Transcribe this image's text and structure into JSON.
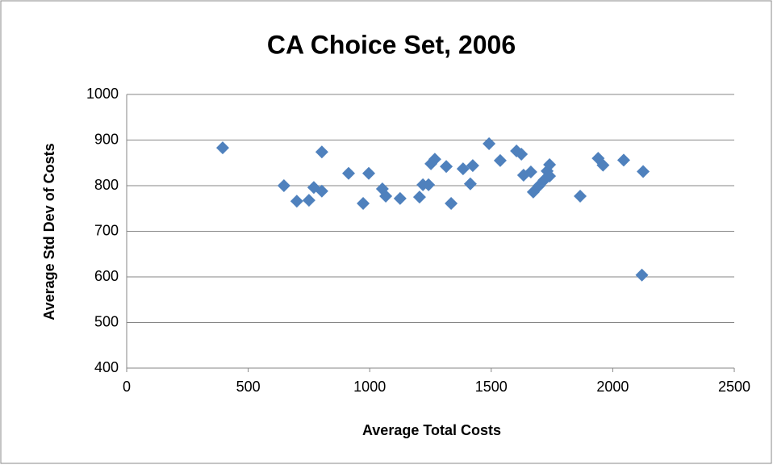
{
  "chart_data": {
    "type": "scatter",
    "title": "CA Choice Set, 2006",
    "x_label": "Average Total Costs",
    "y_label": "Average Std Dev of Costs",
    "series": [
      {
        "name": "CA Choice Set, 2006",
        "color": "#4f81bd",
        "x": [
          395,
          647,
          700,
          750,
          770,
          803,
          803,
          913,
          973,
          996,
          1052,
          1066,
          1125,
          1205,
          1219,
          1242,
          1252,
          1268,
          1315,
          1335,
          1384,
          1414,
          1424,
          1491,
          1537,
          1604,
          1624,
          1633,
          1663,
          1673,
          1697,
          1717,
          1730,
          1740,
          1740,
          1866,
          1940,
          1960,
          2045,
          2125,
          2120
        ],
        "values": [
          883,
          800,
          766,
          768,
          796,
          788,
          874,
          827,
          761,
          827,
          793,
          777,
          772,
          775,
          802,
          802,
          848,
          858,
          842,
          761,
          837,
          804,
          844,
          892,
          855,
          876,
          869,
          823,
          830,
          786,
          800,
          812,
          832,
          821,
          846,
          777,
          860,
          845,
          856,
          831,
          604
        ]
      }
    ],
    "xlim": [
      0,
      2500
    ],
    "xticks": [
      0,
      500,
      1000,
      1500,
      2000,
      2500
    ],
    "ylim": [
      400,
      1000
    ],
    "yticks": [
      400,
      500,
      600,
      700,
      800,
      900,
      1000
    ],
    "grid": true
  }
}
